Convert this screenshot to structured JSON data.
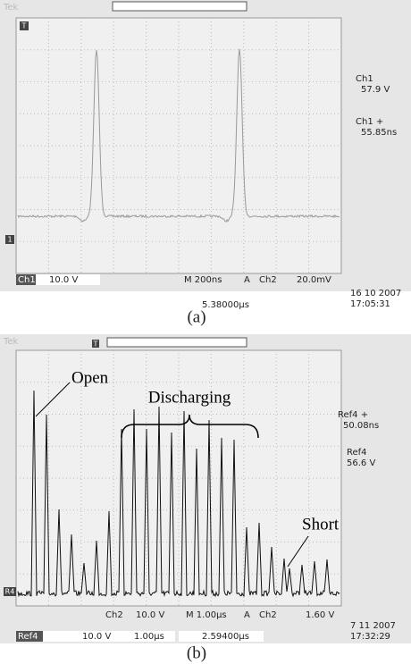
{
  "panel_a": {
    "brand": "Tek",
    "trigger_marker": "T",
    "channel_marker": "1",
    "readout_channel": "Ch1",
    "readout_value": "57.9 V",
    "readout_delta_label": "Ch1 +",
    "readout_delta": "55.85ns",
    "status": {
      "channel": "Ch1",
      "scale": "10.0 V",
      "timebase": "M 200ns",
      "mode": "A",
      "trigger_channel": "Ch2",
      "trigger_level": "20.0mV",
      "date": "16 10  2007",
      "time": "17:05:31",
      "position": "5.38000µs"
    },
    "caption": "(a)"
  },
  "panel_b": {
    "brand": "Tek",
    "trigger_marker": "T",
    "reference_marker": "R4",
    "annotations": {
      "open": "Open",
      "discharging": "Discharging",
      "short": "Short"
    },
    "readout_delta_label": "Ref4 +",
    "readout_delta": "50.08ns",
    "readout_channel": "Ref4",
    "readout_value": "56.6 V",
    "status": {
      "channel": "Ch2",
      "scale": "10.0 V",
      "timebase": "M 1.00µs",
      "mode": "A",
      "trigger_channel": "Ch2",
      "trigger_level": "1.60 V",
      "ref_channel": "Ref4",
      "ref_scale": "10.0 V",
      "ref_timebase": "1.00µs",
      "position": "2.59400µs",
      "date": "7 11  2007",
      "time": "17:32:29"
    },
    "caption": "(b)"
  }
}
